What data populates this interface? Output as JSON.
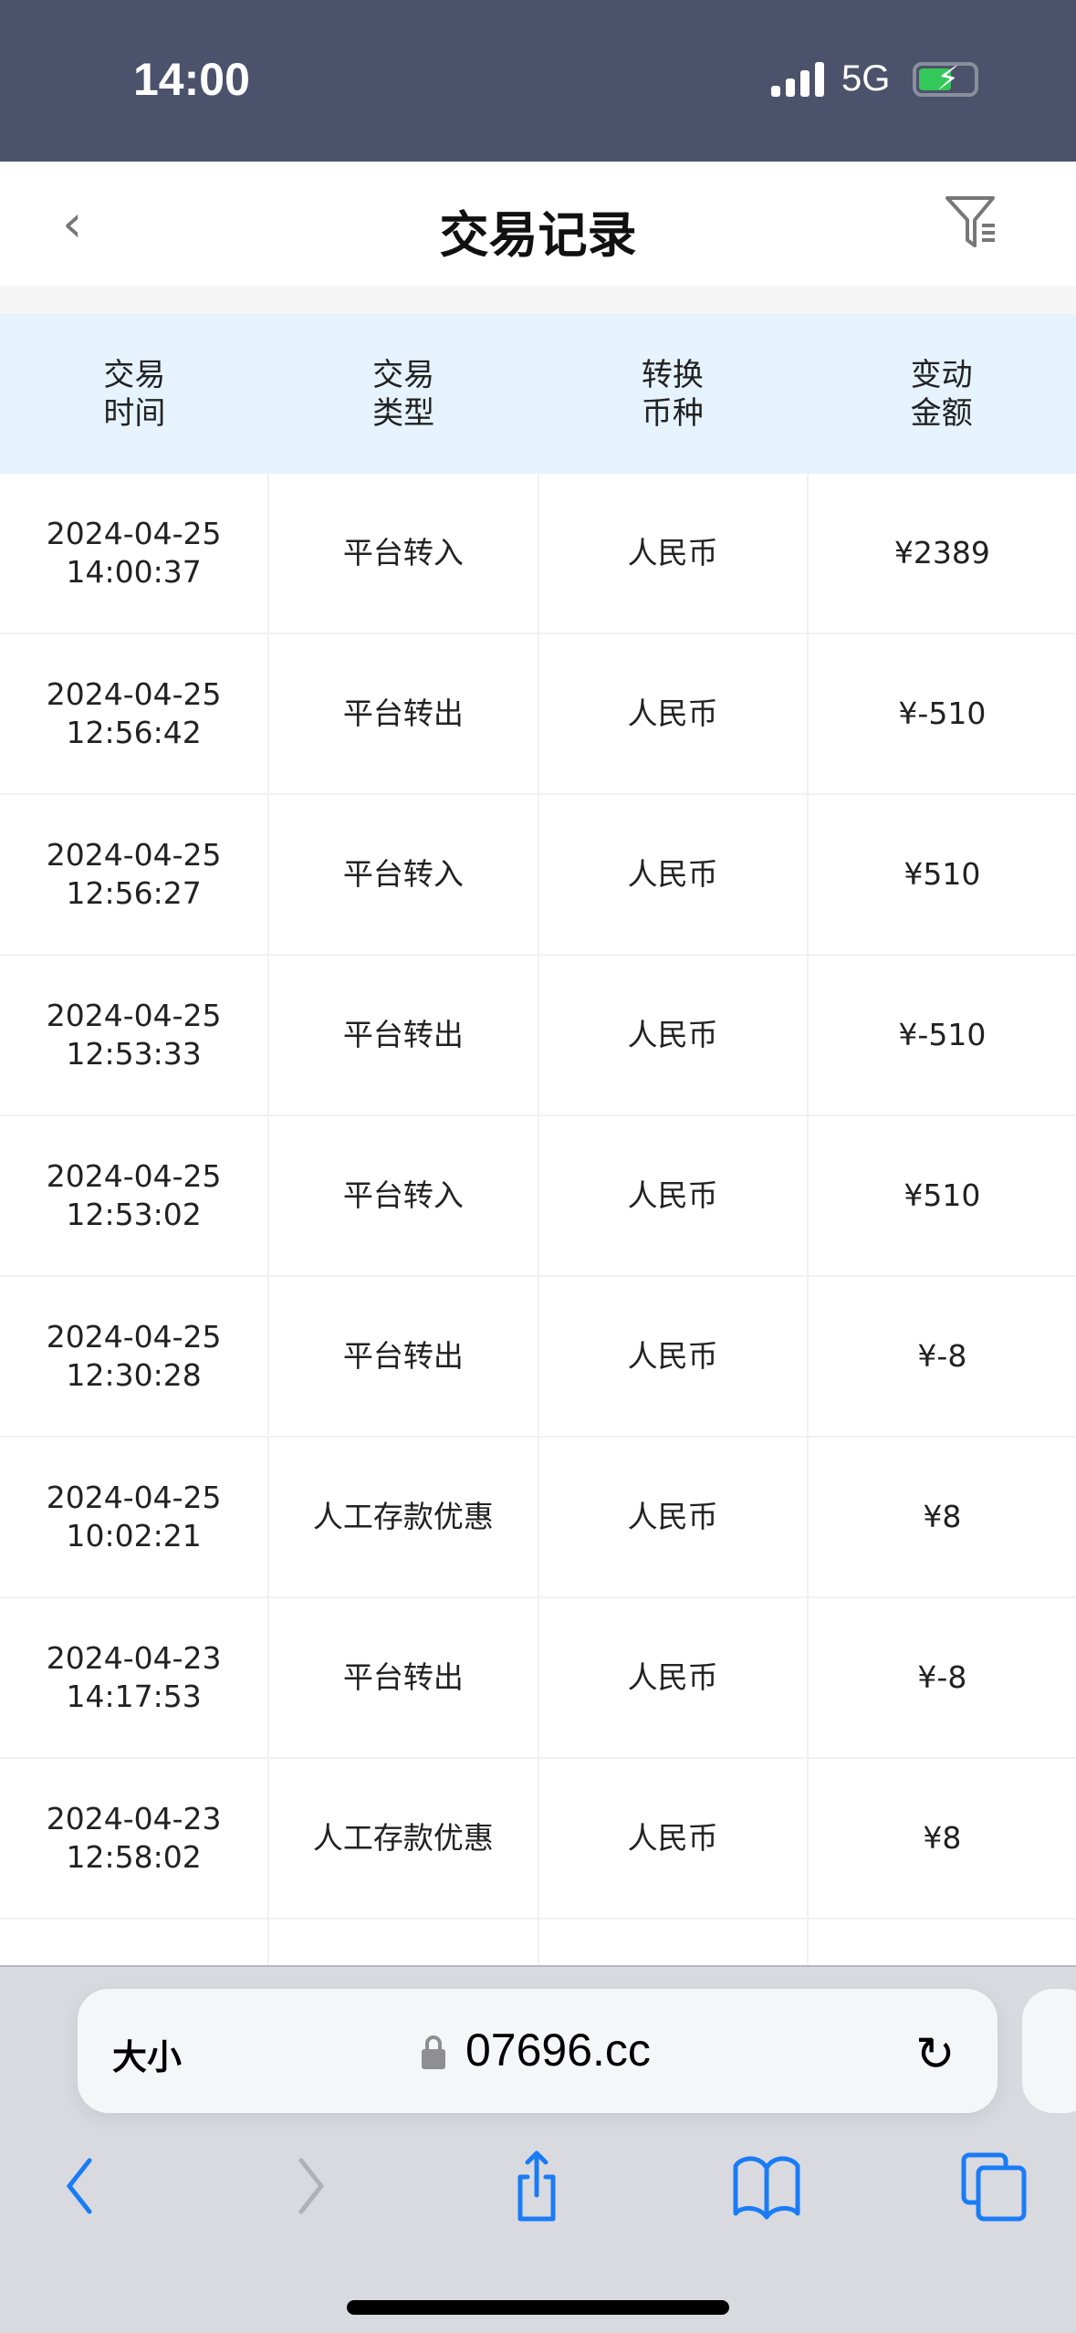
{
  "status_bar": {
    "time": "14:00",
    "network": "5G",
    "battery_level": 0.6
  },
  "nav": {
    "title": "交易记录",
    "back_icon": "chevron-left-icon",
    "filter_icon": "filter-list-icon"
  },
  "table": {
    "headers": [
      "交易\n时间",
      "交易\n类型",
      "转换\n币种",
      "变动\n金额"
    ],
    "rows": [
      [
        "2024-04-25\n14:00:37",
        "平台转入",
        "人民币",
        "¥2389"
      ],
      [
        "2024-04-25\n12:56:42",
        "平台转出",
        "人民币",
        "¥-510"
      ],
      [
        "2024-04-25\n12:56:27",
        "平台转入",
        "人民币",
        "¥510"
      ],
      [
        "2024-04-25\n12:53:33",
        "平台转出",
        "人民币",
        "¥-510"
      ],
      [
        "2024-04-25\n12:53:02",
        "平台转入",
        "人民币",
        "¥510"
      ],
      [
        "2024-04-25\n12:30:28",
        "平台转出",
        "人民币",
        "¥-8"
      ],
      [
        "2024-04-25\n10:02:21",
        "人工存款优惠",
        "人民币",
        "¥8"
      ],
      [
        "2024-04-23\n14:17:53",
        "平台转出",
        "人民币",
        "¥-8"
      ],
      [
        "2024-04-23\n12:58:02",
        "人工存款优惠",
        "人民币",
        "¥8"
      ],
      [
        "",
        "",
        "",
        ""
      ]
    ]
  },
  "browser": {
    "text_size_label": "大小",
    "domain": "07696.cc",
    "accent": "#1a7cf5"
  }
}
